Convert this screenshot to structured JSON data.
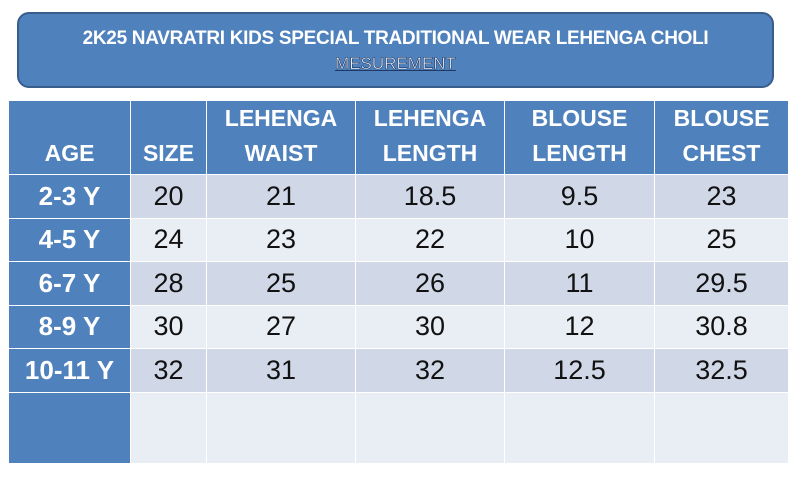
{
  "header": {
    "title": "2K25 NAVRATRI KIDS SPECIAL TRADITIONAL WEAR LEHENGA CHOLI",
    "subtitle": "MESUREMENT"
  },
  "table": {
    "columns": [
      [
        "AGE"
      ],
      [
        "SIZE"
      ],
      [
        "LEHENGA",
        "WAIST"
      ],
      [
        "LEHENGA",
        "LENGTH"
      ],
      [
        "BLOUSE",
        "LENGTH"
      ],
      [
        "BLOUSE",
        "CHEST"
      ]
    ],
    "rows": [
      [
        "2-3 Y",
        20,
        21,
        18.5,
        9.5,
        23
      ],
      [
        "4-5 Y",
        24,
        23,
        22,
        10,
        25
      ],
      [
        "6-7 Y",
        28,
        25,
        26,
        11,
        29.5
      ],
      [
        "8-9 Y",
        30,
        27,
        30,
        12,
        30.8
      ],
      [
        "10-11 Y",
        32,
        31,
        32,
        12.5,
        32.5
      ]
    ]
  }
}
